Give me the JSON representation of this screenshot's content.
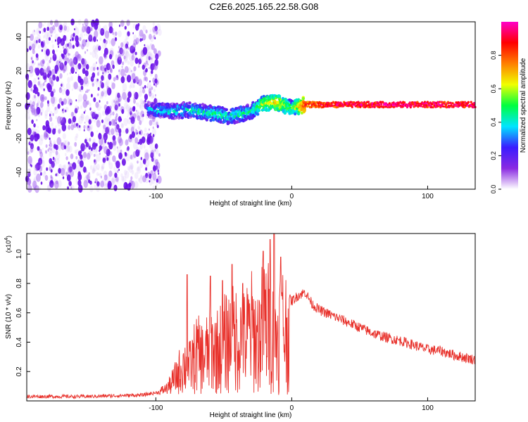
{
  "title": "C2E6.2025.165.22.58.G08",
  "chart_data": [
    {
      "type": "heatmap",
      "panel": "spectrogram",
      "xlabel": "Height of straight line (km)",
      "ylabel": "Frequency (Hz)",
      "xlim": [
        -195,
        135
      ],
      "ylim": [
        -50,
        49
      ],
      "x_ticks": [
        "-100",
        "0",
        "100"
      ],
      "x_tick_values": [
        -100,
        0,
        100
      ],
      "y_ticks": [
        "-40",
        "-20",
        "0",
        "20",
        "40"
      ],
      "y_tick_values": [
        -40,
        -20,
        0,
        20,
        40
      ],
      "noise_region": {
        "x_range": [
          -195,
          -97
        ],
        "y_range": [
          -50,
          49
        ]
      },
      "signal_track": [
        {
          "x": -106,
          "y": -3,
          "amp": 0.35
        },
        {
          "x": -90,
          "y": -4,
          "amp": 0.4
        },
        {
          "x": -75,
          "y": -3,
          "amp": 0.4
        },
        {
          "x": -60,
          "y": -5,
          "amp": 0.45
        },
        {
          "x": -45,
          "y": -7,
          "amp": 0.45
        },
        {
          "x": -30,
          "y": -4,
          "amp": 0.45
        },
        {
          "x": -20,
          "y": 1,
          "amp": 0.6
        },
        {
          "x": -10,
          "y": 1,
          "amp": 0.7
        },
        {
          "x": 0,
          "y": -2,
          "amp": 0.5
        },
        {
          "x": 10,
          "y": 0,
          "amp": 0.85
        },
        {
          "x": 50,
          "y": 0,
          "amp": 0.95
        },
        {
          "x": 100,
          "y": 0,
          "amp": 0.95
        },
        {
          "x": 135,
          "y": 0,
          "amp": 0.95
        }
      ]
    },
    {
      "type": "line",
      "panel": "snr",
      "xlabel": "Height of straight line (km)",
      "ylabel": "SNR (10 * v/v)",
      "y_multiplier": "(x10",
      "y_multiplier_exp": "4",
      "y_multiplier_close": ")",
      "xlim": [
        -195,
        135
      ],
      "ylim": [
        0,
        1.14
      ],
      "x_ticks": [
        "-100",
        "0",
        "100"
      ],
      "x_tick_values": [
        -100,
        0,
        100
      ],
      "y_ticks": [
        "0.2",
        "0.4",
        "0.6",
        "0.8",
        "1.0"
      ],
      "y_tick_values": [
        0.2,
        0.4,
        0.6,
        0.8,
        1.0
      ],
      "series": [
        {
          "color": "#e8302a",
          "x": [
            -195,
            -150,
            -110,
            -97,
            -90,
            -85,
            -80,
            -75,
            -70,
            -65,
            -60,
            -55,
            -50,
            -45,
            -40,
            -35,
            -30,
            -25,
            -20,
            -15,
            -12,
            -8,
            -5,
            0,
            5,
            10,
            15,
            20,
            30,
            40,
            50,
            60,
            70,
            80,
            90,
            100,
            110,
            120,
            130,
            135
          ],
          "y": [
            0.03,
            0.03,
            0.04,
            0.06,
            0.1,
            0.2,
            0.32,
            0.3,
            0.45,
            0.4,
            0.5,
            0.48,
            0.55,
            0.6,
            0.62,
            0.58,
            0.7,
            0.6,
            0.8,
            0.7,
            0.55,
            0.78,
            0.72,
            0.68,
            0.72,
            0.74,
            0.66,
            0.62,
            0.58,
            0.54,
            0.5,
            0.46,
            0.43,
            0.41,
            0.38,
            0.35,
            0.34,
            0.31,
            0.29,
            0.28
          ],
          "peaks": [
            {
              "x": -77,
              "y": 0.86
            },
            {
              "x": -60,
              "y": 0.85
            },
            {
              "x": -51,
              "y": 0.82
            },
            {
              "x": -44,
              "y": 0.93
            },
            {
              "x": -36,
              "y": 0.8
            },
            {
              "x": -21,
              "y": 1.02
            },
            {
              "x": -16,
              "y": 1.1
            },
            {
              "x": -13,
              "y": 1.14
            },
            {
              "x": -8,
              "y": 0.98
            }
          ]
        }
      ]
    }
  ],
  "colorbar": {
    "label": "Normalized spectral amplitude",
    "range": [
      0,
      1
    ],
    "ticks": [
      "0.0",
      "0.2",
      "0.4",
      "0.6",
      "0.8"
    ],
    "tick_values": [
      0.0,
      0.2,
      0.4,
      0.6,
      0.8
    ],
    "colors": [
      "#ffffff",
      "#8a2be2",
      "#3a1cff",
      "#00e5ff",
      "#00ff40",
      "#f0ff00",
      "#ff8000",
      "#ff0000",
      "#ff00c8"
    ]
  }
}
